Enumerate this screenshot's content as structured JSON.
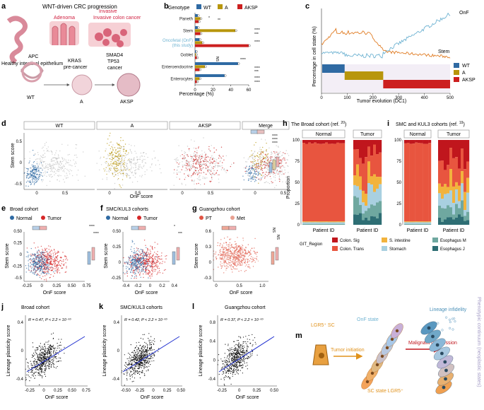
{
  "panel_letters": [
    "a",
    "b",
    "c",
    "d",
    "e",
    "f",
    "g",
    "h",
    "i",
    "j",
    "k",
    "l",
    "m"
  ],
  "panel_a": {
    "title": "WNT-driven CRC progression",
    "adenoma": "Adenoma",
    "invasive": "Invasive colon cancer",
    "healthy": "Healthy intestinal epithelium",
    "apc": "APC",
    "kras": "KRAS",
    "precancer": "pre-cancer",
    "smad4": "SMAD4",
    "tp53": "TP53",
    "cancer": "cancer",
    "wt": "WT",
    "a": "A",
    "aksp": "AKSP"
  },
  "colors": {
    "WT": "#2f6aa3",
    "A": "#b8960c",
    "AKSP": "#cc1f1f",
    "OnF": "#6fb3d2",
    "Stem": "#e07b22",
    "Normal": "#2f6aa3",
    "Tumor": "#d62728",
    "PT": "#e05545",
    "Met": "#e8a090"
  },
  "chart_data": [
    {
      "panel": "b",
      "type": "bar",
      "orientation": "horizontal",
      "legend_title": "Genotype",
      "categories": [
        "Paneth",
        "Stem",
        "Oncofetal (OnF) (this study)",
        "Goblet",
        "Enteroendocrine",
        "Enterocytes"
      ],
      "category_labels": [
        "Paneth",
        "Stem",
        "Oncofetal (OnF)",
        "(this study)",
        "Goblet",
        "Enteroendocrine",
        "Enterocytes"
      ],
      "series": [
        {
          "name": "WT",
          "values": [
            3,
            3,
            5,
            1,
            48,
            33
          ]
        },
        {
          "name": "A",
          "values": [
            6,
            45,
            8,
            1,
            11,
            5
          ]
        },
        {
          "name": "AKSP",
          "values": [
            4,
            6,
            60,
            2,
            5,
            2
          ]
        }
      ],
      "xlabel": "Percentage (%)",
      "xlim": [
        0,
        60
      ],
      "xticks": [
        0,
        20,
        40,
        60
      ],
      "sig_labels": [
        "*",
        "**",
        "****",
        "***",
        "****",
        "NS",
        "****",
        "****",
        "***",
        "****",
        "****"
      ]
    },
    {
      "panel": "c",
      "type": "line",
      "series": [
        {
          "name": "OnF"
        },
        {
          "name": "Stem"
        }
      ],
      "xlabel": "Tumor evolution (DC1)",
      "ylabel": "Percentage in cell state (%)",
      "xlim": [
        0,
        500
      ],
      "xticks": [
        0,
        100,
        200,
        300,
        400,
        500
      ],
      "legend": [
        "WT",
        "A",
        "AKSP"
      ]
    },
    {
      "panel": "d",
      "type": "scatter",
      "facets": [
        "WT",
        "A",
        "AKSP",
        "Merge"
      ],
      "xlabel": "OnF score",
      "ylabel": "Stem score",
      "xticks": [
        "0",
        "0.5"
      ],
      "yticks": [
        "-0.5",
        "0",
        "0.5"
      ],
      "sig_labels": [
        "****",
        "****",
        "****"
      ]
    },
    {
      "panel": "e",
      "type": "scatter",
      "title": "Broad cohort",
      "legend": [
        "Normal",
        "Tumor"
      ],
      "xlabel": "OnF score",
      "ylabel": "Stem score",
      "xticks": [
        "-0.25",
        "0",
        "0.25",
        "0.50",
        "0.75"
      ],
      "yticks": [
        "-0.5",
        "-0.25",
        "0",
        "0.25",
        "0.50"
      ],
      "sig_labels": [
        "****",
        "****"
      ]
    },
    {
      "panel": "f",
      "type": "scatter",
      "title": "SMC/KUL3 cohorts",
      "legend": [
        "Normal",
        "Tumor"
      ],
      "xlabel": "OnF score",
      "ylabel": "Stem score",
      "xticks": [
        "-0.4",
        "-0.2",
        "0",
        "0.2",
        "0.4"
      ],
      "yticks": [
        "-0.25",
        "0",
        "0.25",
        "0.50"
      ],
      "sig_labels": [
        "*",
        "***"
      ]
    },
    {
      "panel": "g",
      "type": "scatter",
      "title": "Guangzhou cohort",
      "legend": [
        "PT",
        "Met"
      ],
      "xlabel": "OnF score",
      "ylabel": "Stem score",
      "xticks": [
        "0",
        "0.5",
        "1.0"
      ],
      "yticks": [
        "-0.3",
        "0",
        "0.3",
        "0.6"
      ],
      "sig_labels": [
        "NS",
        "NS"
      ]
    },
    {
      "panel": "h",
      "type": "bar",
      "stacked": true,
      "title": "The Broad cohort (ref. 20)",
      "facets": [
        "Normal",
        "Tumor"
      ],
      "xlabel": "Patient ID",
      "ylabel": "Proportion",
      "yticks": [
        "0",
        "25",
        "50",
        "75",
        "100"
      ]
    },
    {
      "panel": "i",
      "type": "bar",
      "stacked": true,
      "title": "SMC and KUL3 cohorts (ref. 19)",
      "facets": [
        "Normal",
        "Tumor"
      ],
      "xlabel": "Patient ID",
      "yticks": [
        "0",
        "25",
        "50",
        "75",
        "100"
      ],
      "legend_title": "GIT_Region",
      "legend": [
        "Colon. Sig",
        "Colon. Trans",
        "S. intestine",
        "Stomach",
        "Esophagus M",
        "Esophagus J"
      ],
      "legend_colors": [
        "#c0161d",
        "#e8553f",
        "#f2b33d",
        "#a9d0e0",
        "#6fa8a0",
        "#2e6e74"
      ]
    },
    {
      "panel": "j",
      "type": "scatter",
      "title": "Broad cohort",
      "annotation": "R = 0.47, P < 2.2 × 10⁻¹⁶",
      "xlabel": "OnF score",
      "ylabel": "Lineage plasticity score",
      "xticks": [
        "-0.25",
        "0",
        "0.25",
        "0.50",
        "0.75"
      ],
      "yticks": [
        "-0.4",
        "0",
        "0.4"
      ]
    },
    {
      "panel": "k",
      "type": "scatter",
      "title": "SMC/KUL3 cohorts",
      "annotation": "R = 0.42, P < 2.2 × 10⁻¹⁶",
      "xlabel": "OnF score",
      "ylabel": "Lineage plasticity score",
      "xticks": [
        "-0.50",
        "-0.25",
        "0",
        "0.25",
        "0.50"
      ],
      "yticks": [
        "-0.4",
        "0",
        "0.4"
      ]
    },
    {
      "panel": "l",
      "type": "scatter",
      "title": "Guangzhou cohort",
      "annotation": "R = 0.37, P < 2.2 × 10⁻¹⁶",
      "xlabel": "OnF score",
      "ylabel": "Lineage plasticity score",
      "xticks": [
        "-0.25",
        "0",
        "0.25",
        "0.50"
      ],
      "yticks": [
        "-0.4",
        "0",
        "0.4",
        "0.8"
      ]
    }
  ],
  "panel_m": {
    "lgr5": "LGR5⁺ SC",
    "onf_state": "OnF state",
    "tumor_initiation": "Tumor initiation",
    "sc_state": "SC state LGR5⁺",
    "malignant": "Malignant progression",
    "lineage_infidelity": "Lineage infidelity",
    "continuum": "Phenotypic continuum (neoplastic states)"
  }
}
